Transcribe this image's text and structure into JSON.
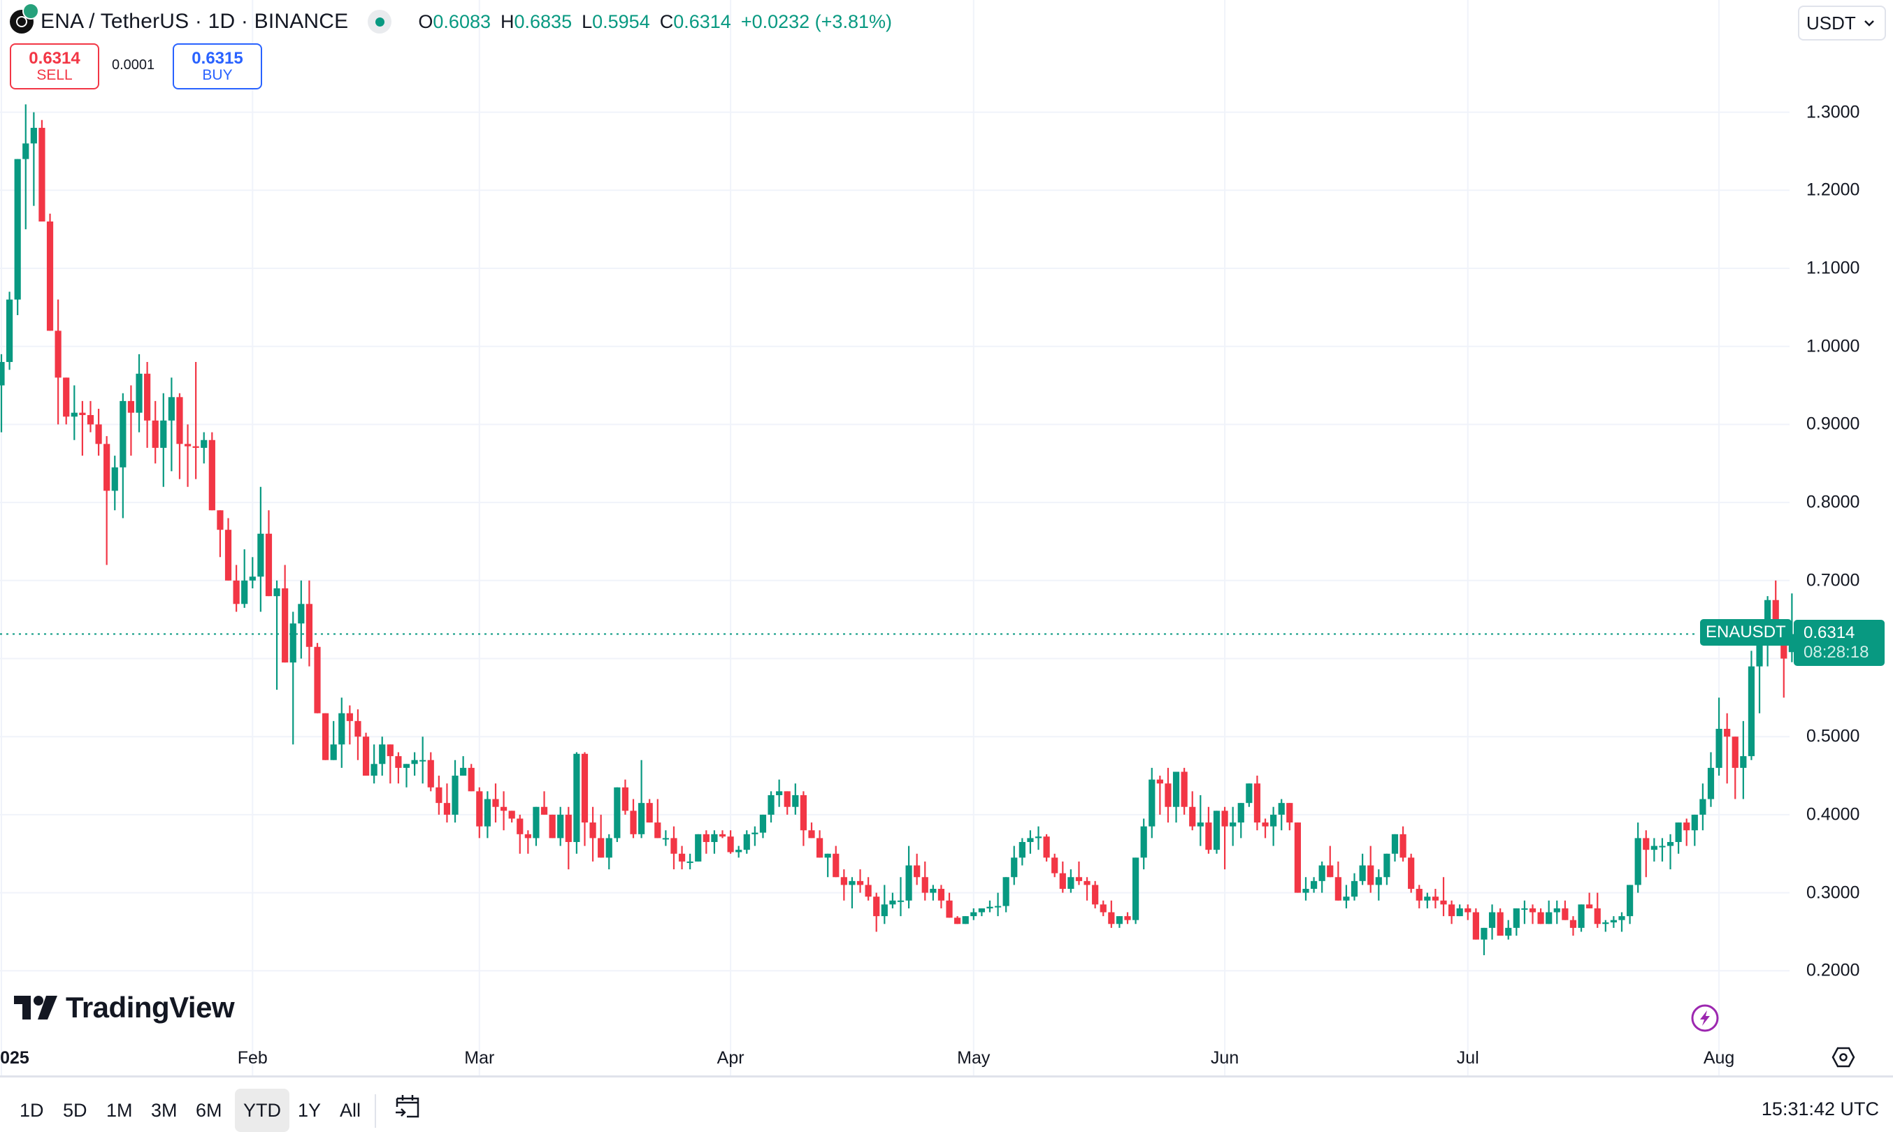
{
  "header": {
    "symbol_title": "ENA / TetherUS · 1D · BINANCE",
    "ohlc": {
      "o_label": "O",
      "o": "0.6083",
      "h_label": "H",
      "h": "0.6835",
      "l_label": "L",
      "l": "0.5954",
      "c_label": "C",
      "c": "0.6314",
      "change": "+0.0232 (+3.81%)"
    },
    "currency": "USDT"
  },
  "trade": {
    "sell_price": "0.6314",
    "sell_label": "SELL",
    "spread": "0.0001",
    "buy_price": "0.6315",
    "buy_label": "BUY"
  },
  "price_label": {
    "symbol": "ENAUSDT",
    "price": "0.6314",
    "countdown": "08:28:18"
  },
  "branding": {
    "logo_text": "TradingView"
  },
  "bottom_bar": {
    "ranges": [
      "1D",
      "5D",
      "1M",
      "3M",
      "6M",
      "YTD",
      "1Y",
      "All"
    ],
    "active_range": "YTD",
    "clock": "15:31:42 UTC"
  },
  "colors": {
    "up": "#089981",
    "down": "#f23645",
    "grid": "#f0f3fa",
    "accent_sell": "#f23645",
    "accent_buy": "#2962ff",
    "event_icon": "#9c27b0"
  },
  "chart_data": {
    "type": "candlestick",
    "title": "ENA / TetherUS · 1D · BINANCE",
    "xlabel": "",
    "ylabel": "USDT",
    "ylim": [
      0.13,
      1.43
    ],
    "y_ticks": [
      "1.3000",
      "1.2000",
      "1.1000",
      "1.0000",
      "0.9000",
      "0.8000",
      "0.7000",
      "0.5000",
      "0.4000",
      "0.3000",
      "0.2000"
    ],
    "x_ticks": [
      "2025",
      "Feb",
      "Mar",
      "Apr",
      "May",
      "Jun",
      "Jul",
      "Aug"
    ],
    "grid": true,
    "start_date": "2025-01-01",
    "last_price": 0.6314,
    "candles_ohlc": [
      [
        0.95,
        0.99,
        0.89,
        0.98
      ],
      [
        0.98,
        1.07,
        0.97,
        1.06
      ],
      [
        1.06,
        1.22,
        1.04,
        1.24
      ],
      [
        1.24,
        1.31,
        1.15,
        1.26
      ],
      [
        1.26,
        1.3,
        1.18,
        1.28
      ],
      [
        1.28,
        1.29,
        1.16,
        1.16
      ],
      [
        1.16,
        1.17,
        1.02,
        1.02
      ],
      [
        1.02,
        1.06,
        0.9,
        0.96
      ],
      [
        0.96,
        0.94,
        0.9,
        0.91
      ],
      [
        0.91,
        0.95,
        0.88,
        0.915
      ],
      [
        0.915,
        0.93,
        0.86,
        0.912
      ],
      [
        0.912,
        0.93,
        0.89,
        0.9
      ],
      [
        0.9,
        0.92,
        0.86,
        0.875
      ],
      [
        0.875,
        0.885,
        0.72,
        0.815
      ],
      [
        0.815,
        0.86,
        0.79,
        0.845
      ],
      [
        0.845,
        0.94,
        0.78,
        0.93
      ],
      [
        0.93,
        0.95,
        0.86,
        0.915
      ],
      [
        0.915,
        0.99,
        0.89,
        0.965
      ],
      [
        0.965,
        0.98,
        0.87,
        0.905
      ],
      [
        0.905,
        0.93,
        0.85,
        0.87
      ],
      [
        0.87,
        0.94,
        0.82,
        0.905
      ],
      [
        0.905,
        0.96,
        0.84,
        0.935
      ],
      [
        0.935,
        0.94,
        0.83,
        0.875
      ],
      [
        0.875,
        0.9,
        0.82,
        0.872
      ],
      [
        0.872,
        0.98,
        0.83,
        0.87
      ],
      [
        0.87,
        0.89,
        0.85,
        0.88
      ],
      [
        0.88,
        0.89,
        0.8,
        0.79
      ],
      [
        0.79,
        0.79,
        0.73,
        0.765
      ],
      [
        0.765,
        0.78,
        0.7,
        0.7
      ],
      [
        0.7,
        0.72,
        0.66,
        0.67
      ],
      [
        0.67,
        0.74,
        0.665,
        0.7
      ],
      [
        0.7,
        0.73,
        0.69,
        0.705
      ],
      [
        0.705,
        0.82,
        0.66,
        0.76
      ],
      [
        0.76,
        0.79,
        0.69,
        0.68
      ],
      [
        0.68,
        0.7,
        0.56,
        0.69
      ],
      [
        0.69,
        0.72,
        0.61,
        0.595
      ],
      [
        0.595,
        0.66,
        0.49,
        0.645
      ],
      [
        0.645,
        0.7,
        0.6,
        0.67
      ],
      [
        0.67,
        0.7,
        0.59,
        0.615
      ],
      [
        0.615,
        0.62,
        0.53,
        0.53
      ],
      [
        0.53,
        0.53,
        0.48,
        0.47
      ],
      [
        0.47,
        0.52,
        0.47,
        0.49
      ],
      [
        0.49,
        0.55,
        0.46,
        0.53
      ],
      [
        0.53,
        0.54,
        0.49,
        0.52
      ],
      [
        0.52,
        0.535,
        0.47,
        0.5
      ],
      [
        0.5,
        0.505,
        0.45,
        0.45
      ],
      [
        0.45,
        0.49,
        0.44,
        0.465
      ],
      [
        0.465,
        0.5,
        0.45,
        0.49
      ],
      [
        0.49,
        0.49,
        0.44,
        0.475
      ],
      [
        0.475,
        0.48,
        0.44,
        0.46
      ],
      [
        0.46,
        0.465,
        0.435,
        0.465
      ],
      [
        0.465,
        0.48,
        0.45,
        0.47
      ],
      [
        0.47,
        0.5,
        0.44,
        0.47
      ],
      [
        0.47,
        0.48,
        0.43,
        0.435
      ],
      [
        0.435,
        0.45,
        0.4,
        0.415
      ],
      [
        0.415,
        0.44,
        0.39,
        0.4
      ],
      [
        0.4,
        0.47,
        0.39,
        0.45
      ],
      [
        0.45,
        0.475,
        0.45,
        0.46
      ],
      [
        0.46,
        0.465,
        0.43,
        0.43
      ],
      [
        0.43,
        0.435,
        0.37,
        0.385
      ],
      [
        0.385,
        0.43,
        0.37,
        0.42
      ],
      [
        0.42,
        0.44,
        0.39,
        0.41
      ],
      [
        0.41,
        0.43,
        0.38,
        0.405
      ],
      [
        0.405,
        0.405,
        0.39,
        0.395
      ],
      [
        0.395,
        0.4,
        0.35,
        0.375
      ],
      [
        0.375,
        0.38,
        0.35,
        0.37
      ],
      [
        0.37,
        0.41,
        0.36,
        0.41
      ],
      [
        0.41,
        0.43,
        0.41,
        0.4
      ],
      [
        0.4,
        0.4,
        0.37,
        0.37
      ],
      [
        0.37,
        0.41,
        0.36,
        0.4
      ],
      [
        0.4,
        0.41,
        0.33,
        0.365
      ],
      [
        0.365,
        0.48,
        0.35,
        0.478
      ],
      [
        0.478,
        0.48,
        0.36,
        0.39
      ],
      [
        0.39,
        0.41,
        0.34,
        0.37
      ],
      [
        0.37,
        0.4,
        0.35,
        0.345
      ],
      [
        0.345,
        0.375,
        0.33,
        0.37
      ],
      [
        0.37,
        0.43,
        0.365,
        0.435
      ],
      [
        0.435,
        0.445,
        0.4,
        0.405
      ],
      [
        0.405,
        0.42,
        0.37,
        0.375
      ],
      [
        0.375,
        0.47,
        0.37,
        0.415
      ],
      [
        0.415,
        0.42,
        0.39,
        0.39
      ],
      [
        0.39,
        0.42,
        0.37,
        0.37
      ],
      [
        0.37,
        0.38,
        0.36,
        0.37
      ],
      [
        0.37,
        0.385,
        0.33,
        0.35
      ],
      [
        0.35,
        0.36,
        0.33,
        0.34
      ],
      [
        0.34,
        0.35,
        0.33,
        0.34
      ],
      [
        0.34,
        0.375,
        0.34,
        0.375
      ],
      [
        0.375,
        0.38,
        0.35,
        0.365
      ],
      [
        0.365,
        0.38,
        0.35,
        0.375
      ],
      [
        0.375,
        0.38,
        0.37,
        0.372
      ],
      [
        0.372,
        0.38,
        0.35,
        0.352
      ],
      [
        0.352,
        0.36,
        0.345,
        0.355
      ],
      [
        0.355,
        0.38,
        0.35,
        0.375
      ],
      [
        0.375,
        0.385,
        0.36,
        0.377
      ],
      [
        0.377,
        0.4,
        0.37,
        0.4
      ],
      [
        0.4,
        0.43,
        0.39,
        0.425
      ],
      [
        0.425,
        0.445,
        0.41,
        0.43
      ],
      [
        0.43,
        0.43,
        0.4,
        0.41
      ],
      [
        0.41,
        0.44,
        0.4,
        0.425
      ],
      [
        0.425,
        0.43,
        0.36,
        0.38
      ],
      [
        0.38,
        0.39,
        0.37,
        0.37
      ],
      [
        0.37,
        0.38,
        0.35,
        0.345
      ],
      [
        0.345,
        0.35,
        0.32,
        0.35
      ],
      [
        0.35,
        0.36,
        0.33,
        0.32
      ],
      [
        0.32,
        0.33,
        0.29,
        0.31
      ],
      [
        0.31,
        0.32,
        0.28,
        0.315
      ],
      [
        0.315,
        0.33,
        0.3,
        0.31
      ],
      [
        0.31,
        0.32,
        0.29,
        0.295
      ],
      [
        0.295,
        0.3,
        0.25,
        0.27
      ],
      [
        0.27,
        0.31,
        0.26,
        0.285
      ],
      [
        0.285,
        0.3,
        0.28,
        0.29
      ],
      [
        0.29,
        0.32,
        0.27,
        0.29
      ],
      [
        0.29,
        0.36,
        0.28,
        0.335
      ],
      [
        0.335,
        0.35,
        0.31,
        0.32
      ],
      [
        0.32,
        0.34,
        0.29,
        0.3
      ],
      [
        0.3,
        0.31,
        0.29,
        0.305
      ],
      [
        0.305,
        0.31,
        0.28,
        0.29
      ],
      [
        0.29,
        0.3,
        0.27,
        0.268
      ],
      [
        0.268,
        0.27,
        0.26,
        0.26
      ],
      [
        0.26,
        0.27,
        0.26,
        0.27
      ],
      [
        0.27,
        0.28,
        0.265,
        0.275
      ],
      [
        0.275,
        0.28,
        0.27,
        0.28
      ],
      [
        0.28,
        0.29,
        0.275,
        0.282
      ],
      [
        0.282,
        0.3,
        0.27,
        0.283
      ],
      [
        0.283,
        0.3,
        0.275,
        0.32
      ],
      [
        0.32,
        0.36,
        0.31,
        0.345
      ],
      [
        0.345,
        0.37,
        0.335,
        0.365
      ],
      [
        0.365,
        0.38,
        0.35,
        0.37
      ],
      [
        0.37,
        0.385,
        0.355,
        0.372
      ],
      [
        0.372,
        0.375,
        0.34,
        0.345
      ],
      [
        0.345,
        0.35,
        0.32,
        0.325
      ],
      [
        0.325,
        0.34,
        0.3,
        0.305
      ],
      [
        0.305,
        0.33,
        0.3,
        0.32
      ],
      [
        0.32,
        0.34,
        0.31,
        0.315
      ],
      [
        0.315,
        0.32,
        0.29,
        0.31
      ],
      [
        0.31,
        0.315,
        0.28,
        0.285
      ],
      [
        0.285,
        0.29,
        0.27,
        0.275
      ],
      [
        0.275,
        0.29,
        0.255,
        0.26
      ],
      [
        0.26,
        0.27,
        0.255,
        0.27
      ],
      [
        0.27,
        0.275,
        0.26,
        0.265
      ],
      [
        0.265,
        0.34,
        0.26,
        0.345
      ],
      [
        0.345,
        0.395,
        0.33,
        0.385
      ],
      [
        0.385,
        0.46,
        0.37,
        0.445
      ],
      [
        0.445,
        0.45,
        0.4,
        0.44
      ],
      [
        0.44,
        0.46,
        0.39,
        0.41
      ],
      [
        0.41,
        0.45,
        0.39,
        0.455
      ],
      [
        0.455,
        0.46,
        0.4,
        0.41
      ],
      [
        0.41,
        0.43,
        0.38,
        0.385
      ],
      [
        0.385,
        0.425,
        0.36,
        0.39
      ],
      [
        0.39,
        0.41,
        0.35,
        0.355
      ],
      [
        0.355,
        0.4,
        0.35,
        0.405
      ],
      [
        0.405,
        0.41,
        0.33,
        0.385
      ],
      [
        0.385,
        0.41,
        0.36,
        0.39
      ],
      [
        0.39,
        0.415,
        0.37,
        0.415
      ],
      [
        0.415,
        0.44,
        0.41,
        0.44
      ],
      [
        0.44,
        0.45,
        0.38,
        0.39
      ],
      [
        0.39,
        0.395,
        0.37,
        0.385
      ],
      [
        0.385,
        0.41,
        0.36,
        0.4
      ],
      [
        0.4,
        0.42,
        0.38,
        0.415
      ],
      [
        0.415,
        0.415,
        0.38,
        0.39
      ],
      [
        0.39,
        0.39,
        0.3,
        0.3
      ],
      [
        0.3,
        0.32,
        0.29,
        0.305
      ],
      [
        0.305,
        0.32,
        0.3,
        0.315
      ],
      [
        0.315,
        0.34,
        0.3,
        0.335
      ],
      [
        0.335,
        0.36,
        0.32,
        0.32
      ],
      [
        0.32,
        0.34,
        0.29,
        0.29
      ],
      [
        0.29,
        0.31,
        0.28,
        0.295
      ],
      [
        0.295,
        0.325,
        0.29,
        0.315
      ],
      [
        0.315,
        0.35,
        0.31,
        0.335
      ],
      [
        0.335,
        0.36,
        0.3,
        0.31
      ],
      [
        0.31,
        0.33,
        0.29,
        0.32
      ],
      [
        0.32,
        0.35,
        0.31,
        0.35
      ],
      [
        0.35,
        0.375,
        0.34,
        0.375
      ],
      [
        0.375,
        0.385,
        0.34,
        0.345
      ],
      [
        0.345,
        0.35,
        0.3,
        0.305
      ],
      [
        0.305,
        0.31,
        0.28,
        0.29
      ],
      [
        0.29,
        0.3,
        0.28,
        0.295
      ],
      [
        0.295,
        0.305,
        0.28,
        0.29
      ],
      [
        0.29,
        0.32,
        0.27,
        0.285
      ],
      [
        0.285,
        0.29,
        0.26,
        0.27
      ],
      [
        0.27,
        0.285,
        0.27,
        0.28
      ],
      [
        0.28,
        0.285,
        0.265,
        0.275
      ],
      [
        0.275,
        0.28,
        0.25,
        0.24
      ],
      [
        0.24,
        0.255,
        0.22,
        0.255
      ],
      [
        0.255,
        0.285,
        0.24,
        0.275
      ],
      [
        0.275,
        0.28,
        0.25,
        0.245
      ],
      [
        0.245,
        0.265,
        0.24,
        0.255
      ],
      [
        0.255,
        0.28,
        0.245,
        0.28
      ],
      [
        0.28,
        0.29,
        0.26,
        0.28
      ],
      [
        0.28,
        0.285,
        0.26,
        0.275
      ],
      [
        0.275,
        0.28,
        0.26,
        0.26
      ],
      [
        0.26,
        0.29,
        0.26,
        0.275
      ],
      [
        0.275,
        0.29,
        0.26,
        0.28
      ],
      [
        0.28,
        0.29,
        0.265,
        0.265
      ],
      [
        0.265,
        0.27,
        0.245,
        0.255
      ],
      [
        0.255,
        0.28,
        0.25,
        0.285
      ],
      [
        0.285,
        0.3,
        0.28,
        0.28
      ],
      [
        0.28,
        0.3,
        0.255,
        0.26
      ],
      [
        0.26,
        0.265,
        0.25,
        0.262
      ],
      [
        0.262,
        0.27,
        0.255,
        0.265
      ],
      [
        0.265,
        0.275,
        0.25,
        0.27
      ],
      [
        0.27,
        0.31,
        0.26,
        0.31
      ],
      [
        0.31,
        0.39,
        0.3,
        0.37
      ],
      [
        0.37,
        0.38,
        0.32,
        0.355
      ],
      [
        0.355,
        0.37,
        0.34,
        0.36
      ],
      [
        0.36,
        0.37,
        0.34,
        0.36
      ],
      [
        0.36,
        0.375,
        0.33,
        0.365
      ],
      [
        0.365,
        0.39,
        0.35,
        0.39
      ],
      [
        0.39,
        0.395,
        0.36,
        0.38
      ],
      [
        0.38,
        0.4,
        0.36,
        0.4
      ],
      [
        0.4,
        0.44,
        0.38,
        0.42
      ],
      [
        0.42,
        0.48,
        0.41,
        0.46
      ],
      [
        0.46,
        0.55,
        0.45,
        0.51
      ],
      [
        0.51,
        0.53,
        0.44,
        0.5
      ],
      [
        0.5,
        0.49,
        0.42,
        0.46
      ],
      [
        0.46,
        0.52,
        0.42,
        0.475
      ],
      [
        0.475,
        0.61,
        0.47,
        0.59
      ],
      [
        0.59,
        0.65,
        0.53,
        0.64
      ],
      [
        0.64,
        0.68,
        0.59,
        0.675
      ],
      [
        0.675,
        0.7,
        0.62,
        0.645
      ],
      [
        0.645,
        0.65,
        0.55,
        0.6
      ],
      [
        0.6083,
        0.6835,
        0.5954,
        0.6314
      ]
    ]
  }
}
